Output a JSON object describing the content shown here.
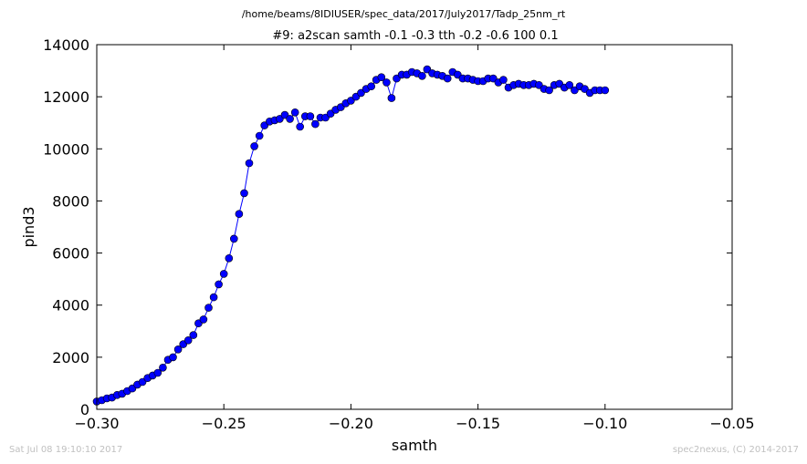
{
  "figure": {
    "suptitle": "/home/beams/8IDIUSER/spec_data/2017/July2017/Tadp_25nm_rt",
    "footer_left": "Sat Jul 08 19:10:10 2017",
    "footer_right": "spec2nexus, (C) 2014-2017"
  },
  "colors": {
    "series": "#0000ff",
    "marker_edge": "#000000",
    "footer": "#c0c0c0"
  },
  "chart_data": {
    "type": "line",
    "title": "#9: a2scan  samth -0.1 -0.3  tth -0.2 -0.6  100 0.1",
    "xlabel": "samth",
    "ylabel": "pind3",
    "xlim": [
      -0.3,
      -0.05
    ],
    "ylim": [
      0,
      14000
    ],
    "xticks": [
      -0.3,
      -0.25,
      -0.2,
      -0.15,
      -0.1,
      -0.05
    ],
    "xtick_labels": [
      "−0.30",
      "−0.25",
      "−0.20",
      "−0.15",
      "−0.10",
      "−0.05"
    ],
    "yticks": [
      0,
      2000,
      4000,
      6000,
      8000,
      10000,
      12000,
      14000
    ],
    "ytick_labels": [
      "0",
      "2000",
      "4000",
      "6000",
      "8000",
      "10000",
      "12000",
      "14000"
    ],
    "grid": false,
    "marker": "circle",
    "x": [
      -0.3,
      -0.298,
      -0.296,
      -0.294,
      -0.292,
      -0.29,
      -0.288,
      -0.286,
      -0.284,
      -0.282,
      -0.28,
      -0.278,
      -0.276,
      -0.274,
      -0.272,
      -0.27,
      -0.268,
      -0.266,
      -0.264,
      -0.262,
      -0.26,
      -0.258,
      -0.256,
      -0.254,
      -0.252,
      -0.25,
      -0.248,
      -0.246,
      -0.244,
      -0.242,
      -0.24,
      -0.238,
      -0.236,
      -0.234,
      -0.232,
      -0.23,
      -0.228,
      -0.226,
      -0.224,
      -0.222,
      -0.22,
      -0.218,
      -0.216,
      -0.214,
      -0.212,
      -0.21,
      -0.208,
      -0.206,
      -0.204,
      -0.202,
      -0.2,
      -0.198,
      -0.196,
      -0.194,
      -0.192,
      -0.19,
      -0.188,
      -0.186,
      -0.184,
      -0.182,
      -0.18,
      -0.178,
      -0.176,
      -0.174,
      -0.172,
      -0.17,
      -0.168,
      -0.166,
      -0.164,
      -0.162,
      -0.16,
      -0.158,
      -0.156,
      -0.154,
      -0.152,
      -0.15,
      -0.148,
      -0.146,
      -0.144,
      -0.142,
      -0.14,
      -0.138,
      -0.136,
      -0.134,
      -0.132,
      -0.13,
      -0.128,
      -0.126,
      -0.124,
      -0.122,
      -0.12,
      -0.118,
      -0.116,
      -0.114,
      -0.112,
      -0.11,
      -0.108,
      -0.106,
      -0.104,
      -0.102,
      -0.1
    ],
    "y": [
      300,
      350,
      420,
      450,
      550,
      600,
      700,
      800,
      950,
      1050,
      1200,
      1300,
      1400,
      1600,
      1900,
      2000,
      2300,
      2500,
      2650,
      2850,
      3300,
      3450,
      3900,
      4300,
      4800,
      5200,
      5800,
      6550,
      7500,
      8300,
      9450,
      10100,
      10500,
      10900,
      11050,
      11100,
      11150,
      11300,
      11150,
      11400,
      10850,
      11250,
      11250,
      10950,
      11200,
      11200,
      11350,
      11500,
      11600,
      11750,
      11850,
      12000,
      12150,
      12300,
      12400,
      12650,
      12750,
      12550,
      11950,
      12700,
      12850,
      12850,
      12950,
      12900,
      12800,
      13050,
      12900,
      12850,
      12800,
      12700,
      12950,
      12850,
      12700,
      12700,
      12650,
      12600,
      12600,
      12700,
      12700,
      12550,
      12650,
      12350,
      12450,
      12500,
      12450,
      12450,
      12500,
      12450,
      12300,
      12250,
      12450,
      12500,
      12350,
      12450,
      12250,
      12400,
      12300,
      12150,
      12250,
      12250,
      12250
    ]
  }
}
